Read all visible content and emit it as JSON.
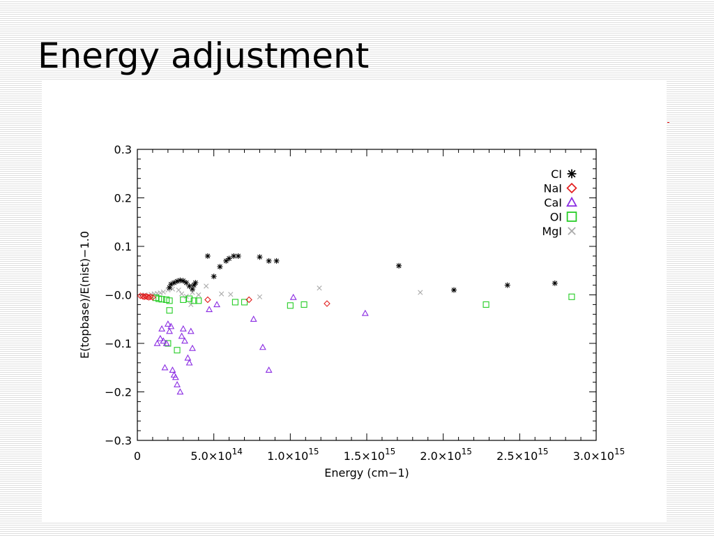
{
  "slide": {
    "title": "Energy adjustment"
  },
  "colors": {
    "CI": "#000000",
    "NaI": "#e32020",
    "CaI": "#8a2be2",
    "OI": "#22cc22",
    "MgI": "#aaaaaa",
    "accent_tick": "#e00000"
  },
  "chart_data": {
    "type": "scatter",
    "xlabel": "Energy (cm−1)",
    "ylabel": "E(topbase)/E(nist)−1.0",
    "xlim": [
      0,
      3000000000000000.0
    ],
    "ylim": [
      -0.3,
      0.3
    ],
    "grid": false,
    "legend_position": "top-right",
    "y_ticks": [
      {
        "value": 0.3,
        "label": "0.3"
      },
      {
        "value": 0.2,
        "label": "0.2"
      },
      {
        "value": 0.1,
        "label": "0.1"
      },
      {
        "value": 0.0,
        "label": "−0.0"
      },
      {
        "value": -0.1,
        "label": "−0.1"
      },
      {
        "value": -0.2,
        "label": "−0.2"
      },
      {
        "value": -0.3,
        "label": "−0.3"
      }
    ],
    "x_ticks": [
      {
        "value": 0,
        "mant": "0",
        "exp": ""
      },
      {
        "value": 500000000000000.0,
        "mant": "5.0×10",
        "exp": "14"
      },
      {
        "value": 1000000000000000.0,
        "mant": "1.0×10",
        "exp": "15"
      },
      {
        "value": 1500000000000000.0,
        "mant": "1.5×10",
        "exp": "15"
      },
      {
        "value": 2000000000000000.0,
        "mant": "2.0×10",
        "exp": "15"
      },
      {
        "value": 2500000000000000.0,
        "mant": "2.5×10",
        "exp": "15"
      },
      {
        "value": 3000000000000000.0,
        "mant": "3.0×10",
        "exp": "15"
      }
    ],
    "series": [
      {
        "name": "CI",
        "marker": "asterisk",
        "color": "#000000",
        "points": [
          [
            210000000000000.0,
            0.015
          ],
          [
            220000000000000.0,
            0.022
          ],
          [
            240000000000000.0,
            0.025
          ],
          [
            260000000000000.0,
            0.028
          ],
          [
            280000000000000.0,
            0.03
          ],
          [
            300000000000000.0,
            0.029
          ],
          [
            320000000000000.0,
            0.025
          ],
          [
            340000000000000.0,
            0.018
          ],
          [
            360000000000000.0,
            0.012
          ],
          [
            370000000000000.0,
            0.02
          ],
          [
            380000000000000.0,
            0.025
          ],
          [
            460000000000000.0,
            0.08
          ],
          [
            500000000000000.0,
            0.038
          ],
          [
            540000000000000.0,
            0.058
          ],
          [
            580000000000000.0,
            0.07
          ],
          [
            600000000000000.0,
            0.075
          ],
          [
            630000000000000.0,
            0.08
          ],
          [
            660000000000000.0,
            0.08
          ],
          [
            800000000000000.0,
            0.078
          ],
          [
            860000000000000.0,
            0.07
          ],
          [
            910000000000000.0,
            0.07
          ],
          [
            1710000000000000.0,
            0.06
          ],
          [
            2070000000000000.0,
            0.01
          ],
          [
            2420000000000000.0,
            0.02
          ],
          [
            2730000000000000.0,
            0.024
          ]
        ]
      },
      {
        "name": "NaI",
        "marker": "diamond",
        "color": "#e32020",
        "points": [
          [
            20000000000000.0,
            -0.002
          ],
          [
            35000000000000.0,
            -0.003
          ],
          [
            45000000000000.0,
            -0.004
          ],
          [
            55000000000000.0,
            -0.003
          ],
          [
            65000000000000.0,
            -0.004
          ],
          [
            75000000000000.0,
            -0.005
          ],
          [
            85000000000000.0,
            -0.004
          ],
          [
            100000000000000.0,
            -0.005
          ],
          [
            460000000000000.0,
            -0.01
          ],
          [
            730000000000000.0,
            -0.01
          ],
          [
            1240000000000000.0,
            -0.018
          ]
        ]
      },
      {
        "name": "CaI",
        "marker": "triangle",
        "color": "#8a2be2",
        "points": [
          [
            130000000000000.0,
            -0.1
          ],
          [
            150000000000000.0,
            -0.09
          ],
          [
            160000000000000.0,
            -0.07
          ],
          [
            170000000000000.0,
            -0.095
          ],
          [
            180000000000000.0,
            -0.15
          ],
          [
            190000000000000.0,
            -0.1
          ],
          [
            200000000000000.0,
            -0.06
          ],
          [
            210000000000000.0,
            -0.075
          ],
          [
            220000000000000.0,
            -0.065
          ],
          [
            230000000000000.0,
            -0.155
          ],
          [
            240000000000000.0,
            -0.165
          ],
          [
            250000000000000.0,
            -0.17
          ],
          [
            260000000000000.0,
            -0.185
          ],
          [
            280000000000000.0,
            -0.2
          ],
          [
            290000000000000.0,
            -0.085
          ],
          [
            300000000000000.0,
            -0.07
          ],
          [
            310000000000000.0,
            -0.095
          ],
          [
            330000000000000.0,
            -0.13
          ],
          [
            340000000000000.0,
            -0.14
          ],
          [
            350000000000000.0,
            -0.075
          ],
          [
            360000000000000.0,
            -0.11
          ],
          [
            470000000000000.0,
            -0.03
          ],
          [
            520000000000000.0,
            -0.02
          ],
          [
            760000000000000.0,
            -0.05
          ],
          [
            820000000000000.0,
            -0.108
          ],
          [
            860000000000000.0,
            -0.155
          ],
          [
            1020000000000000.0,
            -0.005
          ],
          [
            1490000000000000.0,
            -0.038
          ]
        ]
      },
      {
        "name": "OI",
        "marker": "square",
        "color": "#22cc22",
        "points": [
          [
            120000000000000.0,
            -0.006
          ],
          [
            140000000000000.0,
            -0.008
          ],
          [
            160000000000000.0,
            -0.009
          ],
          [
            190000000000000.0,
            -0.01
          ],
          [
            210000000000000.0,
            -0.012
          ],
          [
            200000000000000.0,
            -0.1
          ],
          [
            210000000000000.0,
            -0.032
          ],
          [
            260000000000000.0,
            -0.114
          ],
          [
            300000000000000.0,
            -0.01
          ],
          [
            340000000000000.0,
            -0.008
          ],
          [
            370000000000000.0,
            -0.012
          ],
          [
            400000000000000.0,
            -0.012
          ],
          [
            640000000000000.0,
            -0.015
          ],
          [
            700000000000000.0,
            -0.015
          ],
          [
            1000000000000000.0,
            -0.022
          ],
          [
            1090000000000000.0,
            -0.02
          ],
          [
            2280000000000000.0,
            -0.02
          ],
          [
            2840000000000000.0,
            -0.004
          ]
        ]
      },
      {
        "name": "MgI",
        "marker": "cross",
        "color": "#aaaaaa",
        "points": [
          [
            50000000000000.0,
            0.0
          ],
          [
            90000000000000.0,
            0.001
          ],
          [
            110000000000000.0,
            0.002
          ],
          [
            130000000000000.0,
            0.003
          ],
          [
            150000000000000.0,
            0.004
          ],
          [
            170000000000000.0,
            0.006
          ],
          [
            200000000000000.0,
            0.01
          ],
          [
            230000000000000.0,
            0.012
          ],
          [
            270000000000000.0,
            0.01
          ],
          [
            290000000000000.0,
            0.002
          ],
          [
            320000000000000.0,
            -0.003
          ],
          [
            350000000000000.0,
            -0.02
          ],
          [
            360000000000000.0,
            0.005
          ],
          [
            400000000000000.0,
            0.0
          ],
          [
            450000000000000.0,
            0.018
          ],
          [
            550000000000000.0,
            0.002
          ],
          [
            610000000000000.0,
            0.001
          ],
          [
            800000000000000.0,
            -0.004
          ],
          [
            1190000000000000.0,
            0.014
          ],
          [
            1850000000000000.0,
            0.005
          ]
        ]
      }
    ]
  }
}
